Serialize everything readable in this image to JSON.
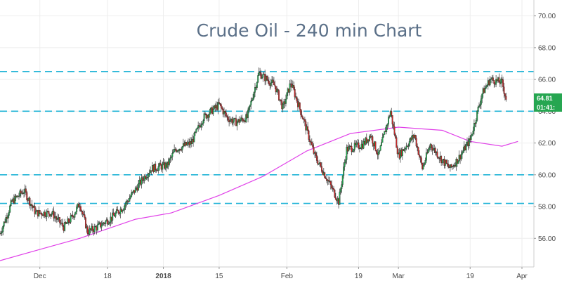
{
  "chart_data": {
    "type": "candlestick",
    "title": "Crude Oil - 240 min Chart",
    "ylim": [
      54.2,
      71.0
    ],
    "yticks": [
      "56.00",
      "58.00",
      "60.00",
      "62.00",
      "64.00",
      "66.00",
      "68.00",
      "70.00"
    ],
    "xticks": [
      {
        "label": "Dec",
        "date": "2017-12-01",
        "bold": false
      },
      {
        "label": "18",
        "date": "2017-12-18",
        "bold": false
      },
      {
        "label": "2018",
        "date": "2018-01-01",
        "bold": true
      },
      {
        "label": "15",
        "date": "2018-01-15",
        "bold": false
      },
      {
        "label": "Feb",
        "date": "2018-02-01",
        "bold": false
      },
      {
        "label": "19",
        "date": "2018-02-19",
        "bold": false
      },
      {
        "label": "Mar",
        "date": "2018-03-01",
        "bold": false
      },
      {
        "label": "19",
        "date": "2018-03-19",
        "bold": false
      },
      {
        "label": "Apr",
        "date": "2018-04-01",
        "bold": false
      }
    ],
    "xlim": [
      "2017-11-21",
      "2018-04-04"
    ],
    "grid": true,
    "horizontal_levels": [
      58.2,
      60.0,
      64.0,
      66.5
    ],
    "level_color": "#1fb3d6",
    "moving_average_color": "#e040e8",
    "up_color": "#26a651",
    "down_color": "#c62828",
    "price_path": [
      [
        "2017-11-21",
        56.3
      ],
      [
        "2017-11-24",
        58.3
      ],
      [
        "2017-11-27",
        59.0
      ],
      [
        "2017-11-30",
        57.6
      ],
      [
        "2017-12-04",
        57.6
      ],
      [
        "2017-12-07",
        56.7
      ],
      [
        "2017-12-09",
        57.3
      ],
      [
        "2017-12-11",
        58.2
      ],
      [
        "2017-12-13",
        56.4
      ],
      [
        "2017-12-16",
        56.8
      ],
      [
        "2017-12-19",
        57.3
      ],
      [
        "2017-12-22",
        58.0
      ],
      [
        "2017-12-27",
        59.8
      ],
      [
        "2017-12-29",
        60.4
      ],
      [
        "2018-01-02",
        60.6
      ],
      [
        "2018-01-04",
        61.6
      ],
      [
        "2018-01-08",
        62.0
      ],
      [
        "2018-01-11",
        63.6
      ],
      [
        "2018-01-15",
        64.4
      ],
      [
        "2018-01-17",
        63.6
      ],
      [
        "2018-01-19",
        63.3
      ],
      [
        "2018-01-22",
        63.6
      ],
      [
        "2018-01-24",
        65.5
      ],
      [
        "2018-01-25",
        66.4
      ],
      [
        "2018-01-29",
        65.6
      ],
      [
        "2018-01-31",
        64.2
      ],
      [
        "2018-02-02",
        65.8
      ],
      [
        "2018-02-05",
        63.6
      ],
      [
        "2018-02-08",
        61.2
      ],
      [
        "2018-02-12",
        59.3
      ],
      [
        "2018-02-14",
        58.3
      ],
      [
        "2018-02-16",
        61.6
      ],
      [
        "2018-02-20",
        61.9
      ],
      [
        "2018-02-22",
        62.5
      ],
      [
        "2018-02-24",
        61.2
      ],
      [
        "2018-02-27",
        64.0
      ],
      [
        "2018-03-01",
        61.2
      ],
      [
        "2018-03-05",
        62.5
      ],
      [
        "2018-03-07",
        60.4
      ],
      [
        "2018-03-09",
        61.9
      ],
      [
        "2018-03-12",
        60.9
      ],
      [
        "2018-03-14",
        60.4
      ],
      [
        "2018-03-16",
        61.0
      ],
      [
        "2018-03-19",
        62.2
      ],
      [
        "2018-03-22",
        65.1
      ],
      [
        "2018-03-24",
        66.0
      ],
      [
        "2018-03-27",
        65.8
      ],
      [
        "2018-03-28",
        64.8
      ]
    ],
    "moving_average": [
      [
        "2017-11-21",
        54.6
      ],
      [
        "2017-12-01",
        55.3
      ],
      [
        "2017-12-11",
        56.0
      ],
      [
        "2017-12-25",
        57.2
      ],
      [
        "2018-01-03",
        57.6
      ],
      [
        "2018-01-15",
        58.7
      ],
      [
        "2018-01-26",
        59.9
      ],
      [
        "2018-02-06",
        61.5
      ],
      [
        "2018-02-17",
        62.6
      ],
      [
        "2018-03-01",
        63.0
      ],
      [
        "2018-03-12",
        62.8
      ],
      [
        "2018-03-19",
        62.1
      ],
      [
        "2018-03-27",
        61.8
      ],
      [
        "2018-03-31",
        62.1
      ]
    ],
    "last_price_label": "64.81",
    "countdown_label": "01:41:",
    "last_price": 64.81
  }
}
